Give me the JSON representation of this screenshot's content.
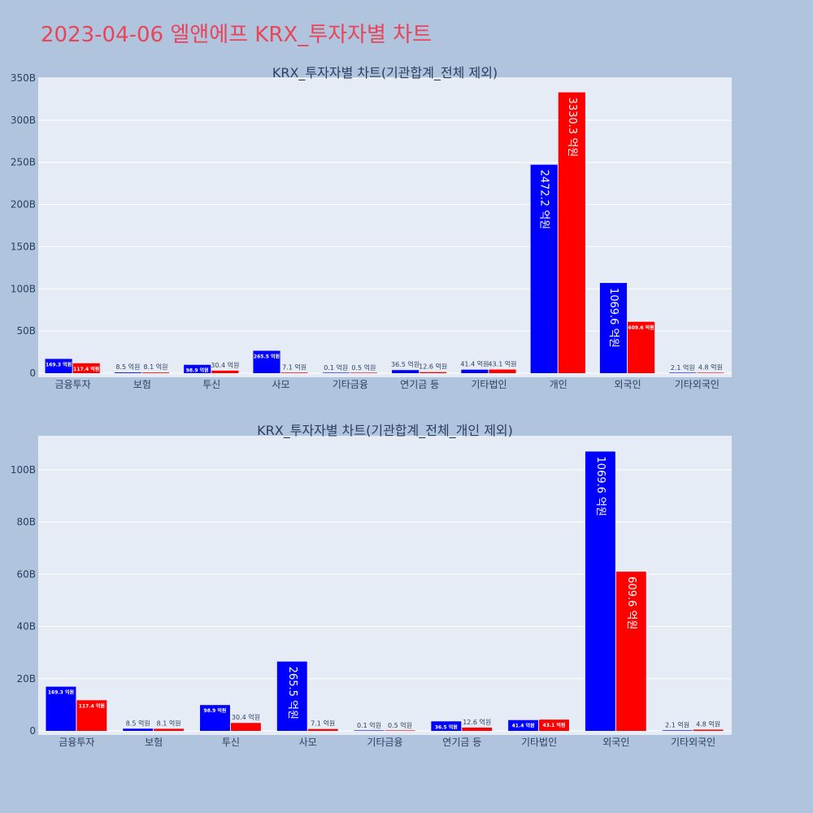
{
  "page_title": "2023-04-06 엘앤에프 KRX_투자자별 차트",
  "colors": {
    "background": "#b0c4de",
    "plot_bg": "#e5ecf6",
    "title": "#e8455a",
    "series_a": "#0000ff",
    "series_b": "#ff0000",
    "text": "#2a3f5f"
  },
  "chart_data": [
    {
      "type": "bar",
      "title": "KRX_투자자별 차트(기관합계_전체 제외)",
      "categories": [
        "금융투자",
        "보험",
        "투신",
        "사모",
        "기타금융",
        "연기금 등",
        "기타법인",
        "개인",
        "외국인",
        "기타외국인"
      ],
      "series": [
        {
          "color": "#0000ff",
          "values": [
            16.93,
            0.85,
            9.89,
            26.55,
            0.01,
            3.65,
            4.14,
            247.22,
            106.96,
            0.21
          ],
          "labels": [
            "169.3 억원",
            "8.5 억원",
            "98.9 억원",
            "265.5 억원",
            "0.1 억원",
            "36.5 억원",
            "41.4 억원",
            "2472.2 억원",
            "1069.6 억원",
            "2.1 억원"
          ]
        },
        {
          "color": "#ff0000",
          "values": [
            11.74,
            0.81,
            3.04,
            0.71,
            0.05,
            1.26,
            4.31,
            333.03,
            60.96,
            0.48
          ],
          "labels": [
            "117.4 억원",
            "8.1 억원",
            "30.4 억원",
            "7.1 억원",
            "0.5 억원",
            "12.6 억원",
            "43.1 억원",
            "3330.3 억원",
            "609.6 억원",
            "4.8 억원"
          ]
        }
      ],
      "ylim": [
        0,
        350
      ],
      "yticks": [
        0,
        50,
        100,
        150,
        200,
        250,
        300,
        350
      ],
      "ytick_labels": [
        "0",
        "50B",
        "100B",
        "150B",
        "200B",
        "250B",
        "300B",
        "350B"
      ],
      "grid": true
    },
    {
      "type": "bar",
      "title": "KRX_투자자별 차트(기관합계_전체_개인 제외)",
      "categories": [
        "금융투자",
        "보험",
        "투신",
        "사모",
        "기타금융",
        "연기금 등",
        "기타법인",
        "외국인",
        "기타외국인"
      ],
      "series": [
        {
          "color": "#0000ff",
          "values": [
            16.93,
            0.85,
            9.89,
            26.55,
            0.01,
            3.65,
            4.14,
            106.96,
            0.21
          ],
          "labels": [
            "169.3 억원",
            "8.5 억원",
            "98.9 억원",
            "265.5 억원",
            "0.1 억원",
            "36.5 억원",
            "41.4 억원",
            "1069.6 억원",
            "2.1 억원"
          ]
        },
        {
          "color": "#ff0000",
          "values": [
            11.74,
            0.81,
            3.04,
            0.71,
            0.05,
            1.26,
            4.31,
            60.96,
            0.48
          ],
          "labels": [
            "117.4 억원",
            "8.1 억원",
            "30.4 억원",
            "7.1 억원",
            "0.5 억원",
            "12.6 억원",
            "43.1 억원",
            "609.6 억원",
            "4.8 억원"
          ]
        }
      ],
      "ylim": [
        0,
        113
      ],
      "yticks": [
        0,
        20,
        40,
        60,
        80,
        100
      ],
      "ytick_labels": [
        "0",
        "20B",
        "40B",
        "60B",
        "80B",
        "100B"
      ],
      "grid": true
    }
  ]
}
